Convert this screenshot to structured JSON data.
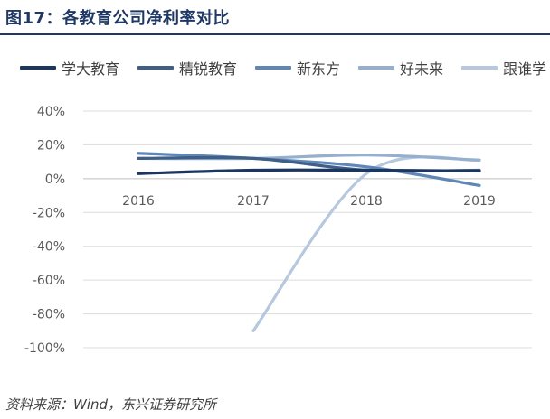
{
  "figure": {
    "title": "图17：各教育公司净利率对比",
    "source": "资料来源：Wind，东兴证券研究所"
  },
  "chart_data": {
    "type": "line",
    "title": "各教育公司净利率对比",
    "categories": [
      "2016",
      "2017",
      "2018",
      "2019"
    ],
    "y_tick_labels": [
      "40%",
      "20%",
      "0%",
      "-20%",
      "-40%",
      "-60%",
      "-80%",
      "-100%"
    ],
    "ylim": [
      -100,
      40
    ],
    "y_unit": "%",
    "grid": true,
    "legend_position": "top",
    "series": [
      {
        "name": "学大教育",
        "color": "#1b3660",
        "values": [
          3,
          5,
          5,
          4.5
        ]
      },
      {
        "name": "精锐教育",
        "color": "#3f5f88",
        "values": [
          12,
          12,
          5,
          5
        ]
      },
      {
        "name": "新东方",
        "color": "#5f86b6",
        "values": [
          15,
          12,
          7,
          -4
        ]
      },
      {
        "name": "好未来",
        "color": "#95b0ce",
        "values": [
          12,
          12,
          14,
          11
        ]
      },
      {
        "name": "跟谁学",
        "color": "#b5c8dd",
        "values": [
          null,
          -90,
          3,
          11
        ]
      }
    ]
  }
}
